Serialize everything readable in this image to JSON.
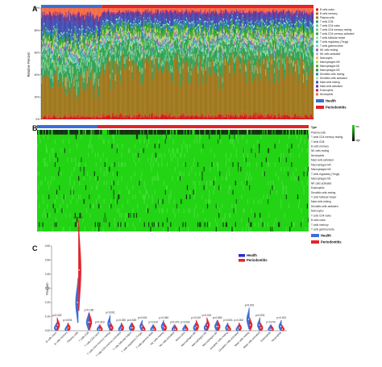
{
  "panels": {
    "a": {
      "label": "A"
    },
    "b": {
      "label": "B"
    },
    "c": {
      "label": "C"
    }
  },
  "colors": {
    "health": "#3b6fd8",
    "periodontitis": "#e0252b",
    "heat_low": "#22d414",
    "heat_high": "#141414"
  },
  "chart_data": [
    {
      "type": "bar",
      "panel": "A",
      "stacked": true,
      "ylabel": "Relative Percent",
      "ylim": [
        0,
        100
      ],
      "yticks": [
        "0%",
        "20%",
        "40%",
        "60%",
        "80%",
        "100%"
      ],
      "groups": [
        {
          "name": "Health",
          "n_samples": 69
        },
        {
          "name": "Periodontitis",
          "n_samples": 241
        }
      ],
      "series": [
        {
          "name": "B cells naive",
          "color": "#d7191c"
        },
        {
          "name": "B cells memory",
          "color": "#b5651d"
        },
        {
          "name": "Plasma cells",
          "color": "#a0781e"
        },
        {
          "name": "T cells CD8",
          "color": "#2ca25f"
        },
        {
          "name": "T cells CD4 naive",
          "color": "#66c2a4"
        },
        {
          "name": "T cells CD4 memory resting",
          "color": "#74c476"
        },
        {
          "name": "T cells CD4 memory activated",
          "color": "#31a354"
        },
        {
          "name": "T cells follicular helper",
          "color": "#a1d99b"
        },
        {
          "name": "T cells regulatory (Tregs)",
          "color": "#41b6c4"
        },
        {
          "name": "T cells gamma delta",
          "color": "#7fcdbb"
        },
        {
          "name": "NK cells resting",
          "color": "#8c6bb1"
        },
        {
          "name": "NK cells activated",
          "color": "#9ebcda"
        },
        {
          "name": "Monocytes",
          "color": "#fdae61"
        },
        {
          "name": "Macrophages M0",
          "color": "#a6d96a"
        },
        {
          "name": "Macrophages M1",
          "color": "#4dac26"
        },
        {
          "name": "Macrophages M2",
          "color": "#1a9641"
        },
        {
          "name": "Dendritic cells resting",
          "color": "#2b83ba"
        },
        {
          "name": "Dendritic cells activated",
          "color": "#abdda4"
        },
        {
          "name": "Mast cells resting",
          "color": "#3f51b5"
        },
        {
          "name": "Mast cells activated",
          "color": "#5e3c99"
        },
        {
          "name": "Eosinophils",
          "color": "#c51b7d"
        },
        {
          "name": "Neutrophils",
          "color": "#f46d43"
        }
      ],
      "approx_mean_percent_periodontitis": [
        3,
        2,
        43,
        6,
        1,
        3,
        8,
        2,
        2,
        1,
        2,
        1,
        1,
        2,
        4,
        2,
        3,
        1,
        5,
        4,
        1,
        3
      ],
      "approx_mean_percent_health": [
        2,
        2,
        30,
        7,
        1,
        6,
        7,
        2,
        3,
        1,
        2,
        1,
        1,
        2,
        4,
        2,
        3,
        1,
        10,
        6,
        1,
        6
      ]
    },
    {
      "type": "heatmap",
      "panel": "B",
      "rows": [
        "Plasma cells",
        "T cells CD4 memory resting",
        "T cells CD8",
        "B cells memory",
        "NK cells resting",
        "Neutrophils",
        "Mast cells activated",
        "Macrophages M0",
        "Macrophages M2",
        "T cells regulatory (Tregs)",
        "Macrophages M1",
        "NK cells activated",
        "Eosinophils",
        "Dendritic cells resting",
        "T cells follicular helper",
        "Mast cells resting",
        "Dendritic cells activated",
        "Monocytes",
        "T cells CD4 naive",
        "B cells naive",
        "T cells memory",
        "T cells gamma delta"
      ],
      "groups": [
        {
          "name": "Health",
          "n_samples": 69
        },
        {
          "name": "Periodontitis",
          "n_samples": 241
        }
      ],
      "group_label": "Type",
      "color_scale": [
        "low",
        "high"
      ],
      "note": "Mostly low values (green) with scattered high (dark) cells; Plasma cells row dark across most samples."
    },
    {
      "type": "violin",
      "panel": "C",
      "ylabel": "Fraction",
      "ylim": [
        0,
        0.6
      ],
      "yticks": [
        "0.00",
        "0.10",
        "0.20",
        "0.30",
        "0.40",
        "0.50",
        "0.60"
      ],
      "legend": [
        "Health",
        "Periodontitis"
      ],
      "legend_position": "top-right",
      "categories": [
        "B cells naive",
        "B cells memory",
        "Plasma cells",
        "T cells CD8",
        "T cells CD4 naive",
        "T cells CD4 memory resting",
        "T cells CD4 memory activated",
        "T cells follicular helper",
        "T cells regulatory (Tregs)",
        "T cells gamma delta",
        "NK cells resting",
        "NK cells activated",
        "Monocytes",
        "Macrophages M0",
        "Macrophages M1",
        "Macrophages M2",
        "Dendritic cells resting",
        "Dendritic cells activated",
        "Mast cells resting",
        "Mast cells activated",
        "Eosinophils",
        "Neutrophils"
      ],
      "p_values": [
        "p=0.002",
        "p=0.001",
        "p<0.001",
        "p=0.180",
        "p=0.410",
        "p<0.001",
        "p=0.030",
        "p=0.520",
        "p<0.001",
        "p=0.310",
        "p=0.040",
        "p=0.270",
        "p=0.002",
        "p=0.010",
        "p=0.001",
        "p=0.560",
        "p<0.001",
        "p=0.002",
        "p<0.001",
        "p<0.001",
        "p=0.470",
        "p<0.001"
      ],
      "series": [
        {
          "name": "Health",
          "medians": [
            0.02,
            0.01,
            0.2,
            0.06,
            0.01,
            0.05,
            0.01,
            0.02,
            0.03,
            0.01,
            0.03,
            0.01,
            0.01,
            0.02,
            0.02,
            0.03,
            0.02,
            0.01,
            0.08,
            0.04,
            0.01,
            0.03
          ]
        },
        {
          "name": "Periodontitis",
          "medians": [
            0.04,
            0.02,
            0.43,
            0.06,
            0.01,
            0.02,
            0.02,
            0.02,
            0.01,
            0.01,
            0.02,
            0.01,
            0.01,
            0.03,
            0.04,
            0.03,
            0.01,
            0.02,
            0.04,
            0.02,
            0.01,
            0.01
          ]
        }
      ]
    }
  ]
}
